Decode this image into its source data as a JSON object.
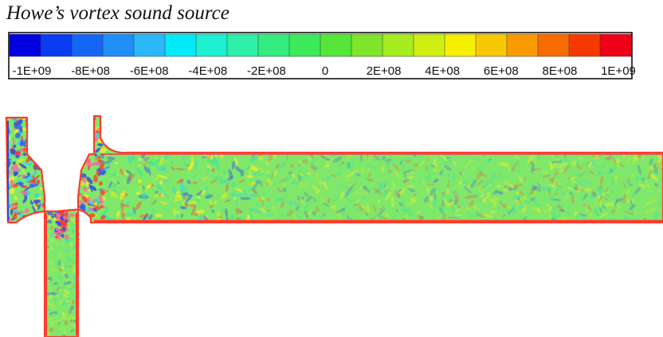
{
  "title": "Howe’s vortex sound source",
  "colorbar": {
    "colors": [
      "#0000e0",
      "#0a3cf0",
      "#1466f5",
      "#1f8ef8",
      "#2bb8fa",
      "#00eaf8",
      "#1ef0d2",
      "#2ef0a8",
      "#35ec80",
      "#3cea5a",
      "#55e639",
      "#7fe52b",
      "#a6ec1e",
      "#cfee12",
      "#f6f000",
      "#f9c800",
      "#f99b00",
      "#f86b00",
      "#f53a00",
      "#f00018"
    ],
    "labels": [
      "-1E+09",
      "-8E+08",
      "-6E+08",
      "-4E+08",
      "-2E+08",
      "0",
      "2E+08",
      "4E+08",
      "6E+08",
      "8E+08",
      "1E+09"
    ],
    "range": [
      -1000000000,
      1000000000
    ]
  },
  "field": {
    "base_color": "#7fe86a",
    "wall_colors": [
      "#ff3b2e",
      "#e8404a",
      "#2d46e8",
      "#ff6a9a"
    ],
    "noise_colors": [
      "#f5ee2a",
      "#c8ec2e",
      "#2ad6e6",
      "#3a58ee",
      "#ff4e3a",
      "#2ee6a0"
    ]
  }
}
